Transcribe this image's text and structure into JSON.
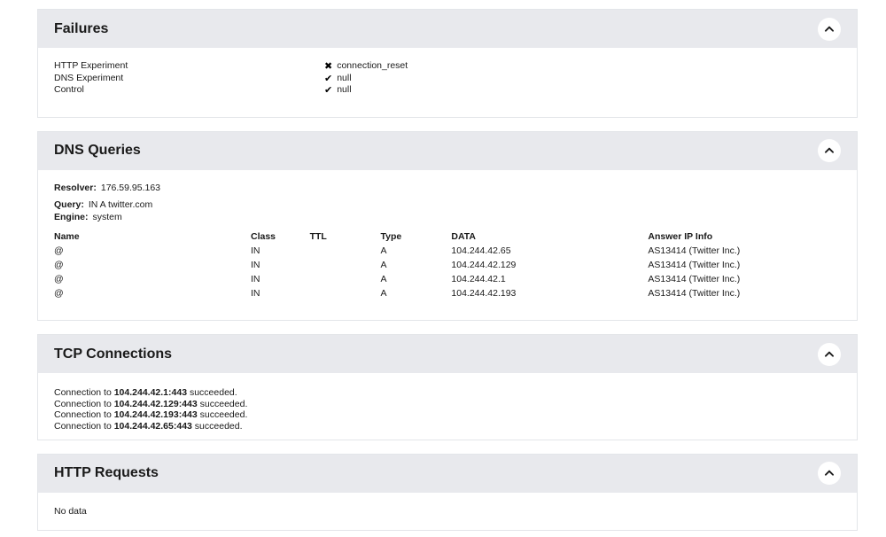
{
  "colors": {
    "header_bg": "#e8e9ed",
    "card_border": "#e3e5e9",
    "text": "#1a1a1a",
    "status_icon": "#000000"
  },
  "icons": {
    "fail": "✖",
    "ok": "✔",
    "collapse": "chevron-up"
  },
  "sections": {
    "failures": {
      "title": "Failures",
      "rows": [
        {
          "label": "HTTP Experiment",
          "status": "fail",
          "value": "connection_reset"
        },
        {
          "label": "DNS Experiment",
          "status": "ok",
          "value": "null"
        },
        {
          "label": "Control",
          "status": "ok",
          "value": "null"
        }
      ]
    },
    "dns_queries": {
      "title": "DNS Queries",
      "resolver_label": "Resolver:",
      "resolver_value": "176.59.95.163",
      "query_label": "Query:",
      "query_value": "IN A twitter.com",
      "engine_label": "Engine:",
      "engine_value": "system",
      "table": {
        "headers": [
          "Name",
          "Class",
          "TTL",
          "Type",
          "DATA",
          "Answer IP Info"
        ],
        "rows": [
          [
            "@",
            "IN",
            "",
            "A",
            "104.244.42.65",
            "AS13414 (Twitter Inc.)"
          ],
          [
            "@",
            "IN",
            "",
            "A",
            "104.244.42.129",
            "AS13414 (Twitter Inc.)"
          ],
          [
            "@",
            "IN",
            "",
            "A",
            "104.244.42.1",
            "AS13414 (Twitter Inc.)"
          ],
          [
            "@",
            "IN",
            "",
            "A",
            "104.244.42.193",
            "AS13414 (Twitter Inc.)"
          ]
        ]
      }
    },
    "tcp_connections": {
      "title": "TCP Connections",
      "connections": [
        {
          "prefix": "Connection to ",
          "endpoint": "104.244.42.1:443",
          "suffix": " succeeded."
        },
        {
          "prefix": "Connection to ",
          "endpoint": "104.244.42.129:443",
          "suffix": " succeeded."
        },
        {
          "prefix": "Connection to ",
          "endpoint": "104.244.42.193:443",
          "suffix": " succeeded."
        },
        {
          "prefix": "Connection to ",
          "endpoint": "104.244.42.65:443",
          "suffix": " succeeded."
        }
      ]
    },
    "http_requests": {
      "title": "HTTP Requests",
      "empty_text": "No data"
    }
  }
}
